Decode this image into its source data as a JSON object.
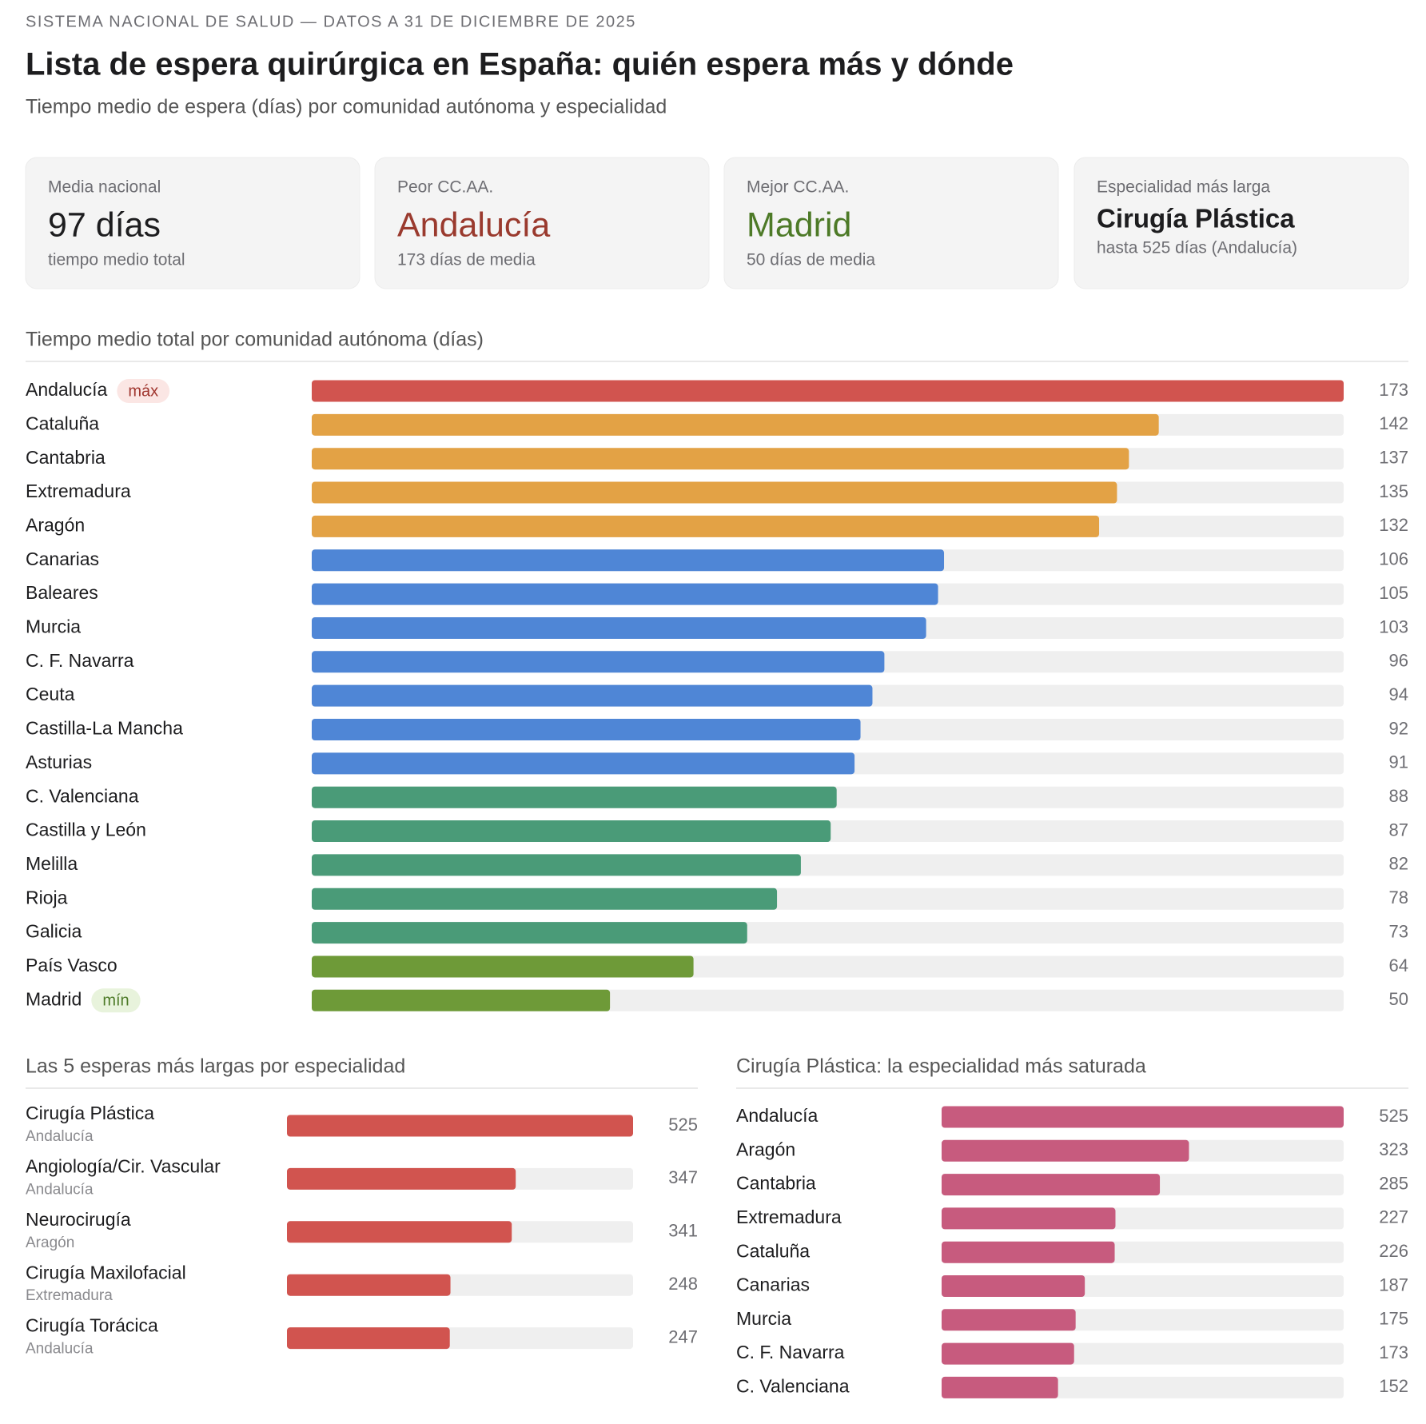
{
  "header": {
    "kicker": "SISTEMA NACIONAL DE SALUD — DATOS A 31 DE DICIEMBRE DE 2025",
    "title": "Lista de espera quirúrgica en España: quién espera más y dónde",
    "subtitle": "Tiempo medio de espera (días) por comunidad autónoma y especialidad"
  },
  "kpis": [
    {
      "label": "Media nacional",
      "value": "97 días",
      "note": "tiempo medio total",
      "color": "#1d1d1f"
    },
    {
      "label": "Peor CC.AA.",
      "value": "Andalucía",
      "note": "173 días de media",
      "color": "#9a3a2e"
    },
    {
      "label": "Mejor CC.AA.",
      "value": "Madrid",
      "note": "50 días de media",
      "color": "#4d7a27"
    },
    {
      "label": "Especialidad más larga",
      "value": "Cirugía Plástica",
      "note": "hasta 525 días (Andalucía)",
      "color": "#1d1d1f"
    }
  ],
  "chart_data": [
    {
      "type": "bar",
      "orientation": "horizontal",
      "title": "Tiempo medio total por comunidad autónoma (días)",
      "categories": [
        "Andalucía",
        "Cataluña",
        "Cantabria",
        "Extremadura",
        "Aragón",
        "Canarias",
        "Baleares",
        "Murcia",
        "C. F. Navarra",
        "Ceuta",
        "Castilla-La Mancha",
        "Asturias",
        "C. Valenciana",
        "Castilla y León",
        "Melilla",
        "Rioja",
        "Galicia",
        "País Vasco",
        "Madrid"
      ],
      "values": [
        173,
        142,
        137,
        135,
        132,
        106,
        105,
        103,
        96,
        94,
        92,
        91,
        88,
        87,
        82,
        78,
        73,
        64,
        50
      ],
      "colors": [
        "#d1544f",
        "#e3a245",
        "#e3a245",
        "#e3a245",
        "#e3a245",
        "#4f86d6",
        "#4f86d6",
        "#4f86d6",
        "#4f86d6",
        "#4f86d6",
        "#4f86d6",
        "#4f86d6",
        "#4a9b78",
        "#4a9b78",
        "#4a9b78",
        "#4a9b78",
        "#4a9b78",
        "#6e9a38",
        "#6e9a38"
      ],
      "badges": [
        {
          "category": "Andalucía",
          "label": "máx",
          "color": "#a0362f",
          "background": "#fbe6e4"
        },
        {
          "category": "Madrid",
          "label": "mín",
          "color": "#4d7a27",
          "background": "#e8f3dc"
        }
      ]
    },
    {
      "type": "bar",
      "orientation": "horizontal",
      "title": "Las 5 esperas más largas por especialidad",
      "categories": [
        "Cirugía Plástica",
        "Angiología/Cir. Vascular",
        "Neurocirugía",
        "Cirugía Maxilofacial",
        "Cirugía Torácica"
      ],
      "sublabels": [
        "Andalucía",
        "Andalucía",
        "Aragón",
        "Extremadura",
        "Andalucía"
      ],
      "values": [
        525,
        347,
        341,
        248,
        247
      ],
      "color": "#d1544f"
    },
    {
      "type": "bar",
      "orientation": "horizontal",
      "title": "Cirugía Plástica: la especialidad más saturada",
      "categories": [
        "Andalucía",
        "Aragón",
        "Cantabria",
        "Extremadura",
        "Cataluña",
        "Canarias",
        "Murcia",
        "C. F. Navarra",
        "C. Valenciana"
      ],
      "values": [
        525,
        323,
        285,
        227,
        226,
        187,
        175,
        173,
        152
      ],
      "color": "#c75b7e"
    }
  ]
}
